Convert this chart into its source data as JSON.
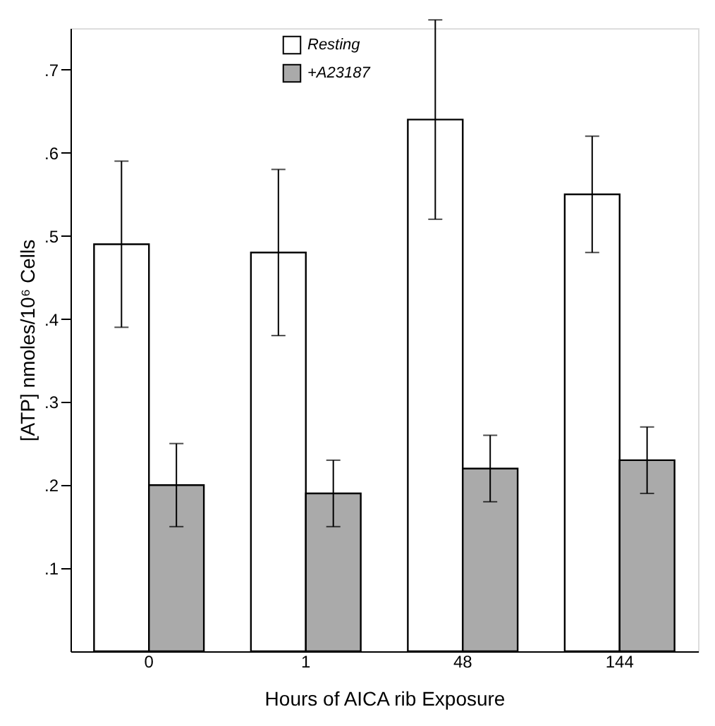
{
  "chart_data": {
    "type": "bar",
    "xlabel": "Hours of AICA rib Exposure",
    "ylabel": "[ATP] nmoles/10⁶ Cells",
    "categories": [
      "0",
      "1",
      "48",
      "144"
    ],
    "series": [
      {
        "name": "Resting",
        "color": "#ffffff",
        "values": [
          0.49,
          0.48,
          0.64,
          0.55
        ],
        "errors": [
          0.1,
          0.1,
          0.12,
          0.07
        ]
      },
      {
        "name": "+A23187",
        "color": "#aaaaaa",
        "values": [
          0.2,
          0.19,
          0.22,
          0.23
        ],
        "errors": [
          0.05,
          0.04,
          0.04,
          0.04
        ]
      }
    ],
    "ylim": [
      0,
      0.75
    ],
    "yticks": [
      {
        "value": 0.1,
        "label": ".1"
      },
      {
        "value": 0.2,
        "label": ".2"
      },
      {
        "value": 0.3,
        "label": ".3"
      },
      {
        "value": 0.4,
        "label": ".4"
      },
      {
        "value": 0.5,
        "label": ".5"
      },
      {
        "value": 0.6,
        "label": ".6"
      },
      {
        "value": 0.7,
        "label": ".7"
      }
    ],
    "grid": false,
    "legend": "top left"
  }
}
